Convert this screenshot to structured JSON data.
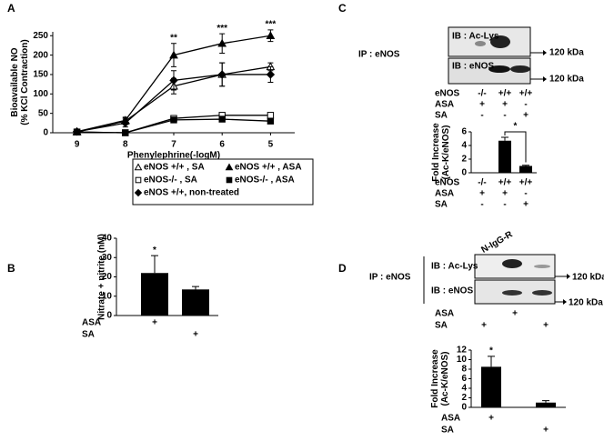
{
  "panel_labels": [
    "A",
    "B",
    "C",
    "D"
  ],
  "chart_data": [
    {
      "type": "line",
      "x_label": "Phenylephrine(-logM)",
      "y_label": [
        "Bioavailable NO",
        "(% KCl Contraction)"
      ],
      "categories": [
        "9",
        "8",
        "7",
        "6",
        "5"
      ],
      "ylim": [
        0,
        260
      ],
      "yticks": [
        0,
        50,
        100,
        150,
        200,
        250
      ],
      "series": [
        {
          "name": "eNOS +/+ , SA",
          "marker": "triangle-open",
          "color": "#000000",
          "values": [
            2,
            30,
            120,
            150,
            170
          ],
          "errors": [
            3,
            8,
            20,
            30,
            10
          ]
        },
        {
          "name": "eNOS +/+ , ASA",
          "marker": "triangle",
          "color": "#000000",
          "values": [
            3,
            32,
            200,
            230,
            250
          ],
          "errors": [
            3,
            8,
            30,
            25,
            15
          ]
        },
        {
          "name": "eNOS-/- , SA",
          "marker": "square-open",
          "color": "#000000",
          "values": [
            2,
            0,
            37,
            45,
            45
          ],
          "errors": [
            2,
            2,
            5,
            5,
            5
          ]
        },
        {
          "name": "eNOS-/- , ASA",
          "marker": "square",
          "color": "#000000",
          "values": [
            2,
            0,
            33,
            35,
            30
          ],
          "errors": [
            2,
            2,
            5,
            5,
            5
          ]
        },
        {
          "name": "eNOS +/+, non-treated",
          "marker": "diamond",
          "color": "#000000",
          "values": [
            3,
            25,
            135,
            150,
            150
          ],
          "errors": [
            3,
            10,
            25,
            30,
            20
          ]
        }
      ],
      "annotations": [
        null,
        null,
        "**",
        "***",
        "***"
      ]
    },
    {
      "type": "bar",
      "y_label": [
        "Nitrate + nitrite (nM)"
      ],
      "categories": [
        null,
        null
      ],
      "values": [
        22,
        13.5
      ],
      "errors": [
        9,
        1.5
      ],
      "color": "#000000",
      "ylim": [
        0,
        40
      ],
      "yticks": [
        0,
        10,
        20,
        30,
        40
      ],
      "annotations": [
        "*",
        null
      ],
      "treatments": [
        {
          "label": "ASA",
          "marks": [
            "+",
            null
          ]
        },
        {
          "label": "SA",
          "marks": [
            null,
            "+"
          ]
        }
      ]
    },
    {
      "type": "bar",
      "y_label": [
        "Fold Increase",
        "(Ac-K/eNOS)"
      ],
      "categories": [
        null,
        null,
        null
      ],
      "values": [
        0,
        4.7,
        1.0
      ],
      "errors": [
        0,
        0.5,
        0.1
      ],
      "color": "#000000",
      "ylim": [
        0,
        6
      ],
      "yticks": [
        0,
        2,
        4,
        6
      ],
      "bracket_label": "*",
      "treatments": [
        {
          "label": "eNOS",
          "marks": [
            "-/-",
            "+/+",
            "+/+"
          ]
        },
        {
          "label": "ASA",
          "marks": [
            "+",
            "+",
            "-"
          ]
        },
        {
          "label": "SA",
          "marks": [
            "-",
            "-",
            "+"
          ]
        }
      ]
    },
    {
      "type": "bar",
      "y_label": [
        "Fold Increase",
        "(Ac-K/eNOS)"
      ],
      "categories": [
        null,
        null
      ],
      "values": [
        8.5,
        1.0
      ],
      "errors": [
        2.2,
        0.4
      ],
      "color": "#000000",
      "ylim": [
        0,
        12
      ],
      "yticks": [
        0,
        2,
        4,
        6,
        8,
        10,
        12
      ],
      "annotations": [
        "*",
        null
      ],
      "treatments": [
        {
          "label": "ASA",
          "marks": [
            "+",
            null
          ]
        },
        {
          "label": "SA",
          "marks": [
            null,
            "+"
          ]
        }
      ]
    }
  ],
  "blots": [
    {
      "ip": "IP : eNOS",
      "rows": [
        {
          "ib": "IB : Ac-Lys",
          "size": "120 kDa"
        },
        {
          "ib": "IB : eNOS",
          "size": "120 kDa"
        }
      ],
      "treatments": [
        {
          "label": "eNOS",
          "marks": [
            "-/-",
            "+/+",
            "+/+"
          ]
        },
        {
          "label": "ASA",
          "marks": [
            "+",
            "+",
            "-"
          ]
        },
        {
          "label": "SA",
          "marks": [
            "-",
            "-",
            "+"
          ]
        }
      ]
    },
    {
      "header": "N-IgG-R",
      "ip": "IP : eNOS",
      "rows": [
        {
          "ib": "IB : Ac-Lys",
          "size": "120 kDa"
        },
        {
          "ib": "IB : eNOS",
          "size": "120 kDa"
        }
      ],
      "treatments": [
        {
          "label": "ASA",
          "marks": [
            null,
            "+",
            null
          ]
        },
        {
          "label": "SA",
          "marks": [
            "+",
            null,
            "+"
          ]
        }
      ]
    }
  ]
}
